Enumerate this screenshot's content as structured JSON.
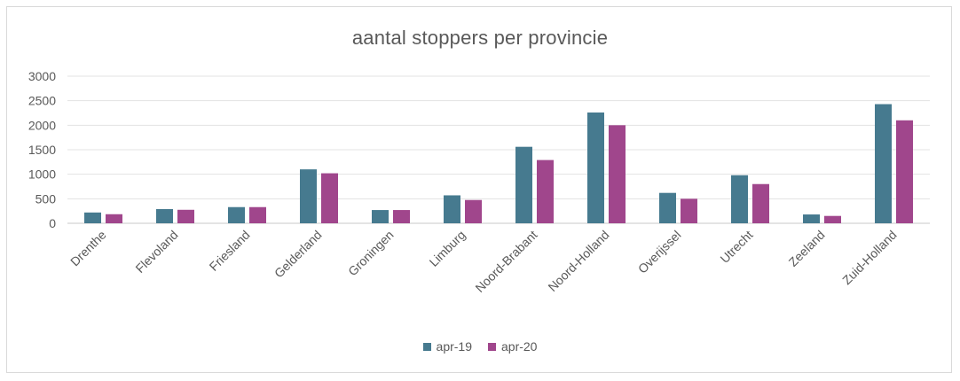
{
  "chart_data": {
    "type": "bar",
    "title": "aantal stoppers per provincie",
    "xlabel": "",
    "ylabel": "",
    "ylim": [
      0,
      3000
    ],
    "yticks": [
      0,
      500,
      1000,
      1500,
      2000,
      2500,
      3000
    ],
    "grid": true,
    "legend_position": "bottom",
    "categories": [
      "Drenthe",
      "Flevoland",
      "Friesland",
      "Gelderland",
      "Groningen",
      "Limburg",
      "Noord-Brabant",
      "Noord-Holland",
      "Overijssel",
      "Utrecht",
      "Zeeland",
      "Zuid-Holland"
    ],
    "series": [
      {
        "name": "apr-19",
        "color": "#467a8f",
        "values": [
          220,
          290,
          330,
          1100,
          270,
          570,
          1560,
          2260,
          620,
          980,
          180,
          2430
        ]
      },
      {
        "name": "apr-20",
        "color": "#a0468c",
        "values": [
          185,
          275,
          330,
          1020,
          270,
          475,
          1290,
          2000,
          500,
          800,
          150,
          2100
        ]
      }
    ]
  }
}
